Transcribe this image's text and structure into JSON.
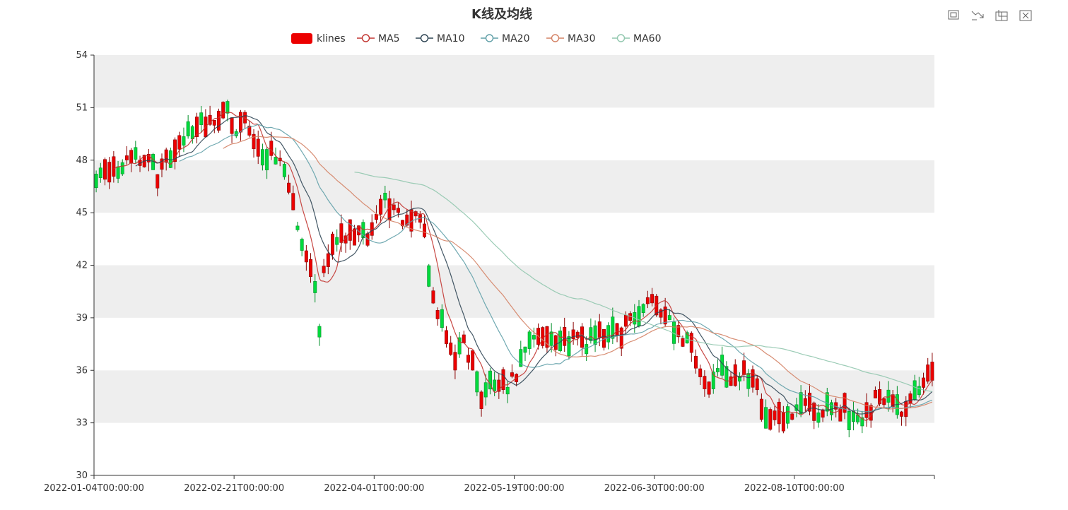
{
  "chart_data": {
    "type": "candlestick",
    "title": "K线及均线",
    "legend": {
      "placement": "top-center",
      "items": [
        "klines",
        "MA5",
        "MA10",
        "MA20",
        "MA30",
        "MA60"
      ]
    },
    "colors": {
      "up": "#ec0000",
      "down": "#00da3c",
      "up_border": "#8a0000",
      "down_border": "#008f28",
      "MA5": "#c23531",
      "MA10": "#2f4554",
      "MA20": "#61a0a8",
      "MA30": "#d48265",
      "MA60": "#91c7ae",
      "split_area": [
        "#ffffff",
        "#eeeeee"
      ]
    },
    "yaxis": {
      "min": 30,
      "max": 54,
      "interval": 3,
      "ticks": [
        "30",
        "33",
        "36",
        "39",
        "42",
        "45",
        "48",
        "51",
        "54"
      ]
    },
    "xaxis": {
      "labels": [
        {
          "index": 0,
          "text": "2022-01-04T00:00:00"
        },
        {
          "index": 32,
          "text": "2022-02-21T00:00:00"
        },
        {
          "index": 64,
          "text": "2022-04-01T00:00:00"
        },
        {
          "index": 96,
          "text": "2022-05-19T00:00:00"
        },
        {
          "index": 128,
          "text": "2022-06-30T00:00:00"
        },
        {
          "index": 160,
          "text": "2022-08-10T00:00:00"
        }
      ]
    },
    "grid": false,
    "toolbox": [
      "zoom-icon",
      "zoom-reset-icon",
      "restore-icon",
      "clear-icon"
    ],
    "anchors": [
      [
        0,
        47.1
      ],
      [
        6,
        47.6
      ],
      [
        10,
        48.2
      ],
      [
        14,
        47.2
      ],
      [
        18,
        48.6
      ],
      [
        22,
        49.8
      ],
      [
        24,
        50.1
      ],
      [
        27,
        49.9
      ],
      [
        30,
        51.0
      ],
      [
        32,
        49.6
      ],
      [
        34,
        50.0
      ],
      [
        36,
        49.5
      ],
      [
        38,
        48.5
      ],
      [
        42,
        48.0
      ],
      [
        44,
        46.8
      ],
      [
        46,
        44.2
      ],
      [
        48,
        42.6
      ],
      [
        50,
        40.7
      ],
      [
        51,
        38.2
      ],
      [
        52,
        41.5
      ],
      [
        54,
        42.8
      ],
      [
        56,
        44.0
      ],
      [
        58,
        43.6
      ],
      [
        60,
        44.2
      ],
      [
        62,
        43.6
      ],
      [
        64,
        44.8
      ],
      [
        66,
        45.6
      ],
      [
        68,
        45.4
      ],
      [
        70,
        44.6
      ],
      [
        72,
        44.2
      ],
      [
        74,
        45.1
      ],
      [
        75,
        43.8
      ],
      [
        76,
        41.6
      ],
      [
        78,
        39.5
      ],
      [
        80,
        37.8
      ],
      [
        82,
        36.8
      ],
      [
        84,
        37.6
      ],
      [
        86,
        36.2
      ],
      [
        88,
        34.6
      ],
      [
        90,
        35.1
      ],
      [
        92,
        35.5
      ],
      [
        94,
        35.0
      ],
      [
        96,
        36.0
      ],
      [
        98,
        37.4
      ],
      [
        100,
        38.0
      ],
      [
        104,
        37.8
      ],
      [
        106,
        37.5
      ],
      [
        108,
        37.8
      ],
      [
        110,
        38.1
      ],
      [
        112,
        37.5
      ],
      [
        114,
        38.4
      ],
      [
        116,
        38.0
      ],
      [
        118,
        38.4
      ],
      [
        120,
        38.2
      ],
      [
        122,
        38.8
      ],
      [
        124,
        39.4
      ],
      [
        126,
        39.6
      ],
      [
        127,
        40.3
      ],
      [
        128,
        39.8
      ],
      [
        129,
        39.6
      ],
      [
        131,
        38.8
      ],
      [
        133,
        38.2
      ],
      [
        135,
        37.8
      ],
      [
        137,
        36.6
      ],
      [
        139,
        35.0
      ],
      [
        141,
        35.6
      ],
      [
        143,
        35.9
      ],
      [
        145,
        35.4
      ],
      [
        147,
        35.9
      ],
      [
        149,
        35.8
      ],
      [
        151,
        34.9
      ],
      [
        153,
        33.4
      ],
      [
        155,
        33.8
      ],
      [
        157,
        33.3
      ],
      [
        159,
        33.8
      ],
      [
        161,
        33.8
      ],
      [
        163,
        34.1
      ],
      [
        165,
        33.7
      ],
      [
        167,
        34.0
      ],
      [
        169,
        33.6
      ],
      [
        171,
        33.7
      ],
      [
        173,
        33.2
      ],
      [
        175,
        33.4
      ],
      [
        177,
        33.9
      ],
      [
        179,
        34.8
      ],
      [
        181,
        34.4
      ],
      [
        183,
        33.7
      ],
      [
        185,
        33.6
      ],
      [
        187,
        34.5
      ],
      [
        189,
        35.2
      ],
      [
        191,
        35.8
      ]
    ],
    "points": 192,
    "seed": 20220104
  }
}
